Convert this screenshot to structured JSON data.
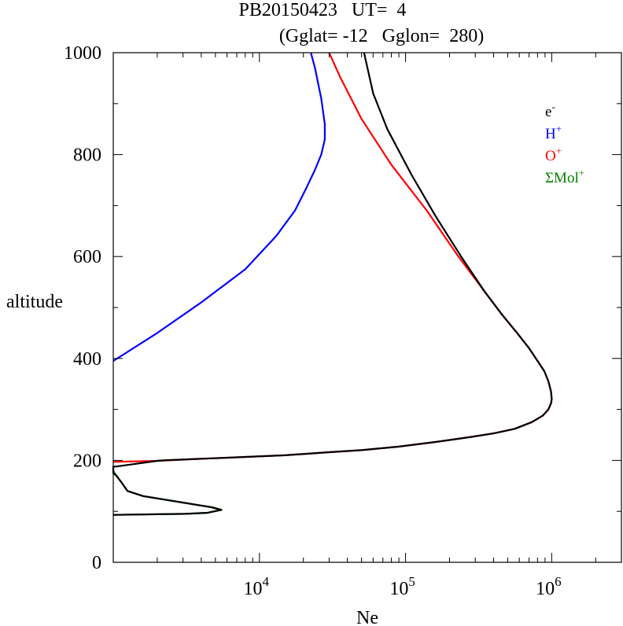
{
  "title_line1": "PB20150423   UT=  4",
  "title_line2": "(Gglat= -12   Gglon=  280)",
  "chart_data": {
    "type": "line",
    "xlabel": "Ne",
    "ylabel": "altitude",
    "xscale": "log",
    "xlim": [
      1000,
      3000000
    ],
    "ylim": [
      0,
      1000
    ],
    "yticks": [
      0,
      200,
      400,
      600,
      800,
      1000
    ],
    "xticks": [
      10000,
      100000,
      1000000
    ],
    "xtick_labels": [
      {
        "base": "10",
        "exp": "4"
      },
      {
        "base": "10",
        "exp": "5"
      },
      {
        "base": "10",
        "exp": "6"
      }
    ],
    "grid": false,
    "legend_position": "top-right",
    "series": [
      {
        "name": "e",
        "sup": "-",
        "color": "#000000",
        "points": [
          [
            1000,
            93
          ],
          [
            3100,
            95
          ],
          [
            4400,
            97
          ],
          [
            5500,
            103
          ],
          [
            4700,
            108
          ],
          [
            1600,
            130
          ],
          [
            1250,
            140
          ],
          [
            1150,
            155
          ],
          [
            1050,
            170
          ],
          [
            1000,
            175
          ],
          [
            1000,
            185
          ],
          [
            1000,
            188
          ],
          [
            1050,
            188
          ],
          [
            2000,
            199
          ],
          [
            2200,
            200
          ],
          [
            3200,
            202
          ],
          [
            7000,
            206
          ],
          [
            15000,
            210
          ],
          [
            30000,
            216
          ],
          [
            50000,
            220
          ],
          [
            90000,
            227
          ],
          [
            170000,
            237
          ],
          [
            280000,
            246
          ],
          [
            400000,
            253
          ],
          [
            560000,
            262
          ],
          [
            730000,
            275
          ],
          [
            870000,
            288
          ],
          [
            950000,
            300
          ],
          [
            990000,
            312
          ],
          [
            1000000,
            320
          ],
          [
            990000,
            335
          ],
          [
            950000,
            355
          ],
          [
            890000,
            375
          ],
          [
            800000,
            395
          ],
          [
            700000,
            420
          ],
          [
            580000,
            450
          ],
          [
            460000,
            485
          ],
          [
            350000,
            530
          ],
          [
            240000,
            600
          ],
          [
            160000,
            680
          ],
          [
            110000,
            760
          ],
          [
            75000,
            850
          ],
          [
            60000,
            920
          ],
          [
            52000,
            1000
          ]
        ]
      },
      {
        "name": "H",
        "sup": "+",
        "color": "#0000ff",
        "points": [
          [
            1000,
            395
          ],
          [
            2000,
            450
          ],
          [
            4000,
            510
          ],
          [
            8000,
            575
          ],
          [
            13000,
            640
          ],
          [
            17500,
            690
          ],
          [
            21000,
            735
          ],
          [
            24000,
            770
          ],
          [
            26500,
            800
          ],
          [
            28000,
            830
          ],
          [
            28000,
            860
          ],
          [
            26500,
            910
          ],
          [
            24000,
            970
          ],
          [
            22500,
            1000
          ]
        ]
      },
      {
        "name": "O",
        "sup": "+",
        "color": "#ff0000",
        "points": [
          [
            1000,
            197
          ],
          [
            2000,
            199
          ],
          [
            3200,
            202
          ],
          [
            7000,
            206
          ],
          [
            15000,
            210
          ],
          [
            30000,
            216
          ],
          [
            50000,
            220
          ],
          [
            90000,
            227
          ],
          [
            170000,
            237
          ],
          [
            280000,
            246
          ],
          [
            400000,
            253
          ],
          [
            560000,
            262
          ],
          [
            730000,
            275
          ],
          [
            870000,
            288
          ],
          [
            950000,
            300
          ],
          [
            990000,
            312
          ],
          [
            1000000,
            320
          ],
          [
            990000,
            335
          ],
          [
            950000,
            355
          ],
          [
            890000,
            375
          ],
          [
            800000,
            395
          ],
          [
            700000,
            420
          ],
          [
            580000,
            450
          ],
          [
            460000,
            485
          ],
          [
            350000,
            530
          ],
          [
            230000,
            600
          ],
          [
            140000,
            690
          ],
          [
            80000,
            780
          ],
          [
            50000,
            870
          ],
          [
            36000,
            950
          ],
          [
            30000,
            1000
          ]
        ]
      },
      {
        "name": "ΣMol",
        "sup": "+",
        "color": "#008000",
        "points": [
          [
            1000,
            93
          ],
          [
            3100,
            95
          ],
          [
            4400,
            97
          ],
          [
            5500,
            103
          ],
          [
            4700,
            108
          ],
          [
            1600,
            130
          ],
          [
            1250,
            140
          ],
          [
            1150,
            155
          ],
          [
            1050,
            170
          ],
          [
            1000,
            180
          ]
        ]
      }
    ]
  }
}
